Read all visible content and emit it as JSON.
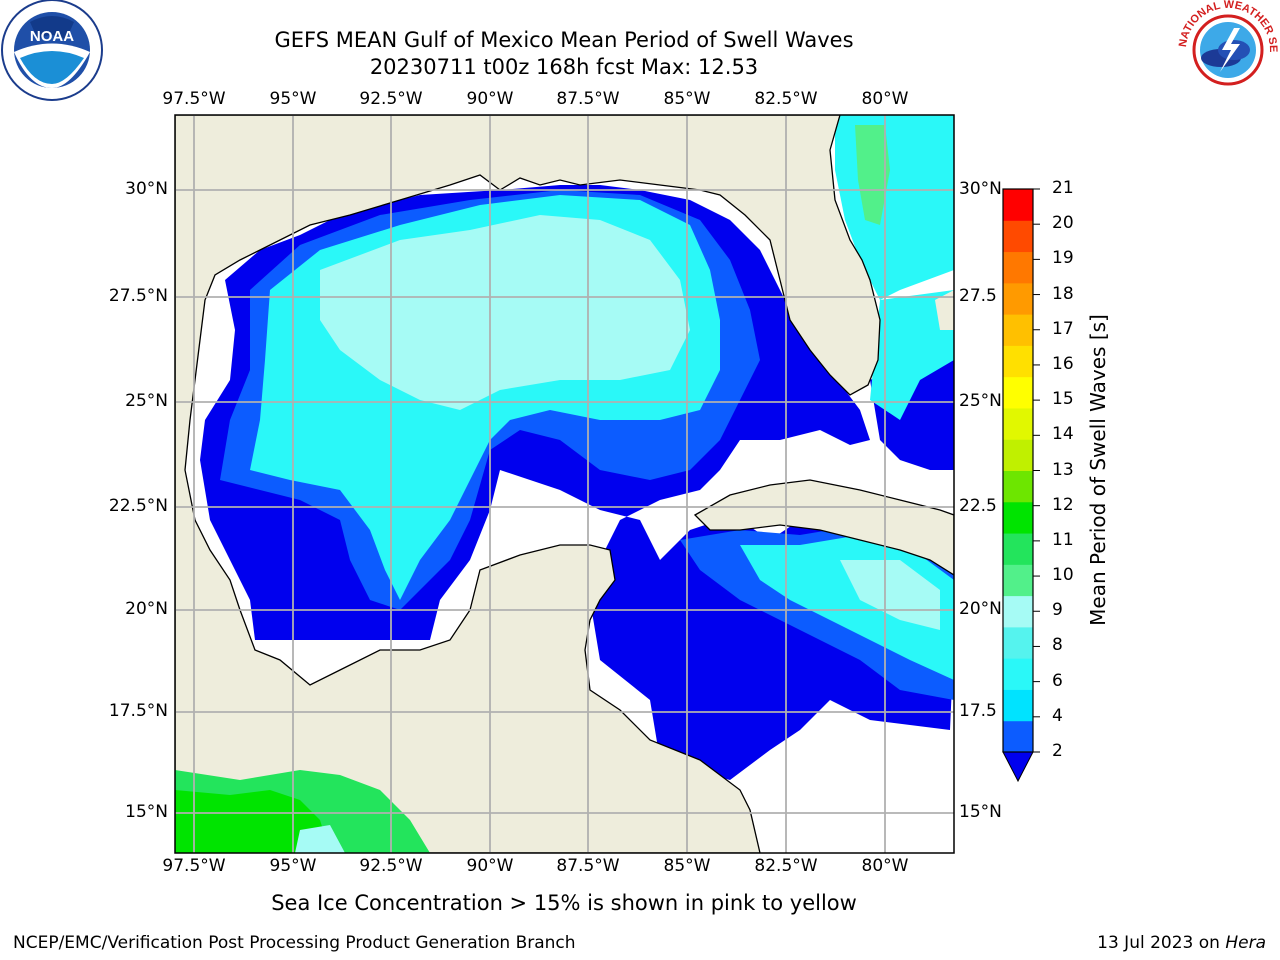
{
  "title": {
    "line1": "GEFS MEAN Gulf of Mexico Mean Period of Swell Waves",
    "line2": "20230711 t00z 168h fcst   Max: 12.53"
  },
  "map": {
    "longitude_labels": [
      "97.5°W",
      "95°W",
      "92.5°W",
      "90°W",
      "87.5°W",
      "85°W",
      "82.5°W",
      "80°W"
    ],
    "latitude_labels_left": [
      "30°N",
      "27.5°N",
      "25°N",
      "22.5°N",
      "20°N",
      "17.5°N",
      "15°N"
    ],
    "latitude_labels_right": [
      "30°N",
      "27.5",
      "25°N",
      "22.5",
      "20°N",
      "17.5",
      "15°N"
    ],
    "colors": {
      "land": "#eeeddc",
      "ocean_white": "#ffffff",
      "grid": "#b0b0b0",
      "coast": "#000000"
    }
  },
  "colorbar": {
    "label": "Mean Period of Swell Waves [s]",
    "ticks": [
      "21",
      "20",
      "19",
      "18",
      "17",
      "16",
      "15",
      "14",
      "13",
      "12",
      "11",
      "10",
      "9",
      "8",
      "6",
      "4",
      "2"
    ],
    "colors_bottom_to_top": [
      "#0c5cff",
      "#00e3ff",
      "#2af8f8",
      "#55f3ee",
      "#a6fbf5",
      "#52f08a",
      "#23e45c",
      "#00e400",
      "#6de600",
      "#c0f000",
      "#e1f800",
      "#ffff00",
      "#ffe000",
      "#ffc000",
      "#ff9a00",
      "#ff7800",
      "#ff4a00",
      "#ff0000"
    ],
    "under_color": "#0000ee"
  },
  "subtitle": "Sea Ice Concentration > 15% is shown in pink to yellow",
  "footer": {
    "left": "NCEP/EMC/Verification Post Processing Product Generation Branch",
    "right_date": "13 Jul 2023 on ",
    "right_host": "Hera"
  },
  "logos": {
    "noaa_text": "NOAA",
    "nws_text": "NATIONAL WEATHER SERVICE"
  }
}
